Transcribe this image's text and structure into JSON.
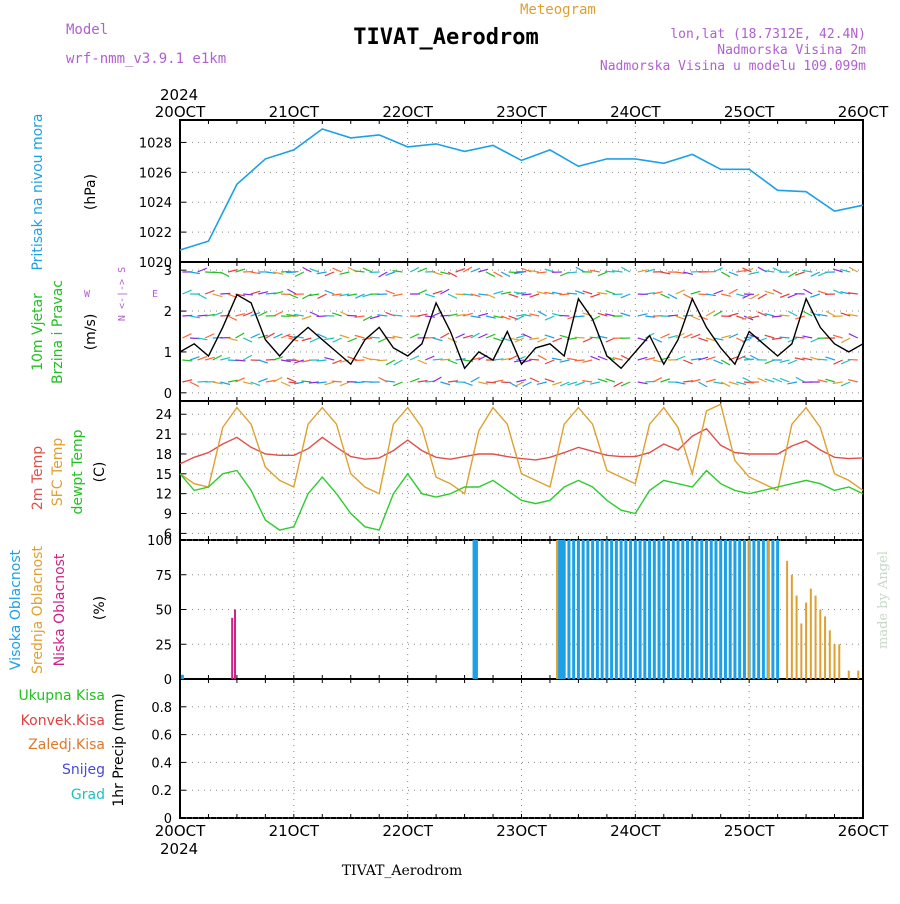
{
  "header": {
    "model_label": "Model",
    "model_value": "wrf-nmm_v3.9.1  e1km",
    "meteogram_label": "Meteogram",
    "station_title": "TIVAT_Aerodrom",
    "lonlat": "lon,lat (18.7312E, 42.4N)",
    "elevation": "Nadmorska Visina 2m",
    "model_elevation": "Nadmorska Visina u modelu 109.099m",
    "footer_station": "TIVAT_Aerodrom",
    "credit": "made by Angel"
  },
  "colors": {
    "pressure": "#1ea0e6",
    "temp2m": "#e0504a",
    "sfc": "#e0a030",
    "dewpt": "#2ecc2e",
    "high_cloud": "#1ea0e6",
    "mid_cloud": "#e0a030",
    "low_cloud": "#cc2288",
    "wind_label": "#22c022",
    "purple": "#b060d0"
  },
  "time_axis": {
    "year": "2024",
    "days": [
      "20OCT",
      "21OCT",
      "22OCT",
      "23OCT",
      "24OCT",
      "25OCT",
      "26OCT"
    ]
  },
  "panels": {
    "pressure": {
      "ylabel_main": "Pritisak na nivou mora",
      "unit": "(hPa)"
    },
    "wind": {
      "ylabel_line1": "10m Vjetar",
      "ylabel_line2": "Brzina i Pravac",
      "unit": "(m/s)",
      "compass_ns": "N <-|-> S",
      "compass_w": "W",
      "compass_e": "E"
    },
    "temp": {
      "label_2m": "2m Temp",
      "label_sfc": "SFC Temp",
      "label_dew": "dewpt Temp",
      "unit": "(C)"
    },
    "cloud": {
      "label_high": "Visoka Oblacnost",
      "label_mid": "Srednja Oblacnost",
      "label_low": "Niska Oblacnost",
      "unit": "(%)"
    },
    "precip": {
      "legend": [
        "Ukupna Kisa",
        "Konvek.Kisa",
        "Zaledj.Kisa",
        "Snijeg",
        "Grad"
      ],
      "legend_colors": [
        "#22c022",
        "#e04040",
        "#e0782a",
        "#4848e0",
        "#20c0c0"
      ],
      "ylabel": "1hr Precip (mm)"
    }
  },
  "chart_data": [
    {
      "type": "line",
      "title": "",
      "ylabel": "Pritisak na nivou mora (hPa)",
      "x_unit": "hours since 20OCT 00Z",
      "ylim": [
        1020,
        1029.5
      ],
      "yticks": [
        1020,
        1022,
        1024,
        1026,
        1028
      ],
      "series": [
        {
          "name": "",
          "x": [
            0,
            6,
            12,
            18,
            24,
            30,
            36,
            42,
            48,
            54,
            60,
            66,
            72,
            78,
            84,
            90,
            96,
            102,
            108,
            114,
            120,
            126,
            132,
            138,
            144
          ],
          "values": [
            1020.8,
            1021.4,
            1025.2,
            1026.9,
            1027.5,
            1028.9,
            1028.3,
            1028.5,
            1027.7,
            1027.9,
            1027.4,
            1027.8,
            1026.8,
            1027.5,
            1026.4,
            1026.9,
            1026.9,
            1026.6,
            1027.2,
            1026.2,
            1026.2,
            1024.8,
            1024.7,
            1023.4,
            1023.8
          ]
        }
      ]
    },
    {
      "type": "line",
      "title": "",
      "ylabel": "10m Vjetar Brzina i Pravac (m/s)",
      "x_unit": "hours since 20OCT 00Z",
      "ylim": [
        -0.2,
        3.2
      ],
      "yticks": [
        0,
        1,
        2,
        3
      ],
      "series": [
        {
          "name": "",
          "x": [
            0,
            3,
            6,
            9,
            12,
            15,
            18,
            21,
            24,
            27,
            30,
            33,
            36,
            39,
            42,
            45,
            48,
            51,
            54,
            57,
            60,
            63,
            66,
            69,
            72,
            75,
            78,
            81,
            84,
            87,
            90,
            93,
            96,
            99,
            102,
            105,
            108,
            111,
            114,
            117,
            120,
            123,
            126,
            129,
            132,
            135,
            138,
            141,
            144
          ],
          "values": [
            1.0,
            1.2,
            0.9,
            1.6,
            2.4,
            2.2,
            1.3,
            0.9,
            1.3,
            1.6,
            1.3,
            1.0,
            0.7,
            1.3,
            1.6,
            1.1,
            0.9,
            1.2,
            2.2,
            1.5,
            0.6,
            1.0,
            0.8,
            1.5,
            0.7,
            1.1,
            1.2,
            0.9,
            2.3,
            1.8,
            0.9,
            0.6,
            1.0,
            1.4,
            0.7,
            1.3,
            2.3,
            1.6,
            1.1,
            0.7,
            1.5,
            1.2,
            0.9,
            1.2,
            2.3,
            1.6,
            1.2,
            1.0,
            1.2
          ]
        }
      ]
    },
    {
      "type": "line",
      "title": "",
      "ylabel": "Temp (C)",
      "x_unit": "hours since 20OCT 00Z",
      "ylim": [
        5,
        26
      ],
      "yticks": [
        6,
        9,
        12,
        15,
        18,
        21,
        24
      ],
      "series": [
        {
          "name": "2m Temp",
          "x": [
            0,
            3,
            6,
            9,
            12,
            15,
            18,
            21,
            24,
            27,
            30,
            33,
            36,
            39,
            42,
            45,
            48,
            51,
            54,
            57,
            60,
            63,
            66,
            69,
            72,
            75,
            78,
            81,
            84,
            87,
            90,
            93,
            96,
            99,
            102,
            105,
            108,
            111,
            114,
            117,
            120,
            123,
            126,
            129,
            132,
            135,
            138,
            141,
            144
          ],
          "values": [
            16.5,
            17.5,
            18.2,
            19.5,
            20.5,
            19.0,
            18.0,
            17.8,
            17.8,
            18.8,
            20.5,
            19.0,
            17.6,
            17.2,
            17.4,
            18.5,
            20.1,
            18.5,
            17.5,
            17.2,
            17.6,
            18.0,
            18.0,
            17.6,
            17.3,
            17.1,
            17.5,
            18.2,
            19.0,
            18.4,
            17.8,
            17.6,
            17.6,
            18.2,
            19.5,
            18.6,
            20.7,
            21.8,
            19.3,
            18.2,
            18.0,
            18.0,
            18.0,
            19.2,
            20.0,
            18.6,
            17.5,
            17.3,
            17.4
          ]
        },
        {
          "name": "SFC Temp",
          "x": [
            0,
            3,
            6,
            9,
            12,
            15,
            18,
            21,
            24,
            27,
            30,
            33,
            36,
            39,
            42,
            45,
            48,
            51,
            54,
            57,
            60,
            63,
            66,
            69,
            72,
            75,
            78,
            81,
            84,
            87,
            90,
            93,
            96,
            99,
            102,
            105,
            108,
            111,
            114,
            117,
            120,
            123,
            126,
            129,
            132,
            135,
            138,
            141,
            144
          ],
          "values": [
            15.0,
            13.5,
            13.0,
            22.0,
            25.0,
            22.5,
            16.0,
            14.0,
            13.0,
            22.5,
            25.0,
            22.5,
            15.0,
            13.0,
            12.0,
            22.5,
            25.0,
            22.0,
            14.5,
            13.5,
            12.0,
            21.5,
            25.0,
            22.5,
            15.0,
            14.0,
            13.0,
            22.5,
            25.0,
            22.5,
            15.5,
            14.5,
            13.5,
            22.5,
            25.0,
            22.0,
            15.0,
            24.5,
            25.5,
            17.0,
            14.5,
            13.5,
            12.5,
            22.5,
            25.0,
            22.0,
            15.0,
            14.0,
            12.5
          ]
        },
        {
          "name": "dewpt Temp",
          "x": [
            0,
            3,
            6,
            9,
            12,
            15,
            18,
            21,
            24,
            27,
            30,
            33,
            36,
            39,
            42,
            45,
            48,
            51,
            54,
            57,
            60,
            63,
            66,
            69,
            72,
            75,
            78,
            81,
            84,
            87,
            90,
            93,
            96,
            99,
            102,
            105,
            108,
            111,
            114,
            117,
            120,
            123,
            126,
            129,
            132,
            135,
            138,
            141,
            144
          ],
          "values": [
            15.0,
            12.5,
            13.0,
            15.0,
            15.5,
            12.5,
            8.0,
            6.5,
            7.0,
            12.0,
            14.5,
            12.0,
            9.0,
            7.0,
            6.5,
            12.0,
            15.0,
            12.0,
            11.5,
            12.0,
            13.0,
            13.0,
            14.0,
            12.5,
            11.0,
            10.5,
            11.0,
            13.0,
            14.0,
            13.0,
            11.0,
            9.5,
            9.0,
            12.5,
            14.0,
            13.5,
            13.0,
            15.5,
            13.5,
            12.5,
            12.0,
            12.5,
            13.0,
            13.5,
            14.0,
            13.5,
            12.5,
            13.0,
            12.0
          ]
        }
      ]
    },
    {
      "type": "bar",
      "title": "",
      "ylabel": "Oblacnost (%)",
      "x_unit": "hours since 20OCT 00Z",
      "ylim": [
        0,
        100
      ],
      "yticks": [
        0,
        25,
        50,
        75,
        100
      ],
      "series": [
        {
          "name": "Visoka Oblacnost",
          "x": [
            0.5,
            62.0,
            62.5,
            80.0,
            80.5,
            81,
            82,
            83,
            84,
            85,
            86,
            87,
            88,
            89,
            90,
            91,
            92,
            93,
            94,
            95,
            96,
            97,
            98,
            99,
            100,
            101,
            102,
            103,
            104,
            105,
            106,
            107,
            108,
            109,
            110,
            111,
            112,
            113,
            114,
            115,
            116,
            117,
            118,
            119,
            120,
            121,
            122,
            123,
            124,
            125,
            126
          ],
          "values": [
            3,
            100,
            100,
            100,
            100,
            100,
            100,
            100,
            100,
            100,
            100,
            100,
            100,
            100,
            100,
            100,
            100,
            100,
            100,
            100,
            100,
            100,
            100,
            100,
            100,
            100,
            100,
            100,
            100,
            100,
            100,
            100,
            100,
            100,
            100,
            100,
            100,
            100,
            100,
            100,
            100,
            100,
            100,
            100,
            100,
            100,
            100,
            100,
            100,
            100,
            100
          ]
        },
        {
          "name": "Srednja Oblacnost",
          "x": [
            79.5,
            120,
            124,
            128,
            129,
            130,
            131,
            132,
            133,
            134,
            135,
            136,
            137,
            138,
            139,
            141,
            143
          ],
          "values": [
            100,
            100,
            100,
            85,
            75,
            60,
            40,
            55,
            65,
            60,
            50,
            45,
            35,
            25,
            25,
            6,
            6
          ]
        },
        {
          "name": "Niska Oblacnost",
          "x": [
            11.0,
            11.6
          ],
          "values": [
            44,
            50
          ]
        }
      ]
    },
    {
      "type": "bar",
      "title": "",
      "ylabel": "1hr Precip (mm)",
      "x_unit": "hours since 20OCT 00Z",
      "ylim": [
        0,
        1.0
      ],
      "yticks": [
        0,
        0.2,
        0.4,
        0.6,
        0.8
      ],
      "series": [
        {
          "name": "Ukupna Kisa",
          "x": [],
          "values": []
        }
      ]
    }
  ]
}
